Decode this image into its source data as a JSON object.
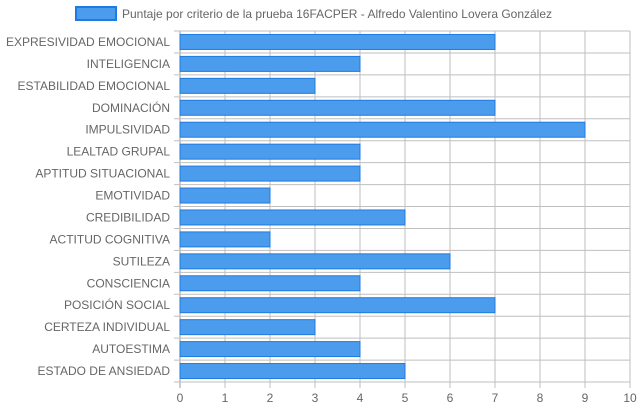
{
  "chart_data": {
    "type": "bar",
    "orientation": "horizontal",
    "categories": [
      "EXPRESIVIDAD EMOCIONAL",
      "INTELIGENCIA",
      "ESTABILIDAD EMOCIONAL",
      "DOMINACIÓN",
      "IMPULSIVIDAD",
      "LEALTAD GRUPAL",
      "APTITUD SITUACIONAL",
      "EMOTIVIDAD",
      "CREDIBILIDAD",
      "ACTITUD COGNITIVA",
      "SUTILEZA",
      "CONSCIENCIA",
      "POSICIÓN SOCIAL",
      "CERTEZA INDIVIDUAL",
      "AUTOESTIMA",
      "ESTADO DE ANSIEDAD"
    ],
    "series": [
      {
        "name": "Puntaje por criterio de la prueba 16FACPER - Alfredo Valentino Lovera González",
        "values": [
          7,
          4,
          3,
          7,
          9,
          4,
          4,
          2,
          5,
          2,
          6,
          4,
          7,
          3,
          4,
          5
        ]
      }
    ],
    "xlim": [
      0,
      10
    ],
    "xticks": [
      "0",
      "1",
      "2",
      "3",
      "4",
      "5",
      "6",
      "7",
      "8",
      "9",
      "10"
    ],
    "grid": true,
    "legend_position": "top",
    "colors": {
      "bar_fill": "#4b9cec",
      "bar_stroke": "#1f7be0",
      "grid": "#bfbfbf",
      "zero_axis": "#999999",
      "text": "#666666"
    }
  }
}
